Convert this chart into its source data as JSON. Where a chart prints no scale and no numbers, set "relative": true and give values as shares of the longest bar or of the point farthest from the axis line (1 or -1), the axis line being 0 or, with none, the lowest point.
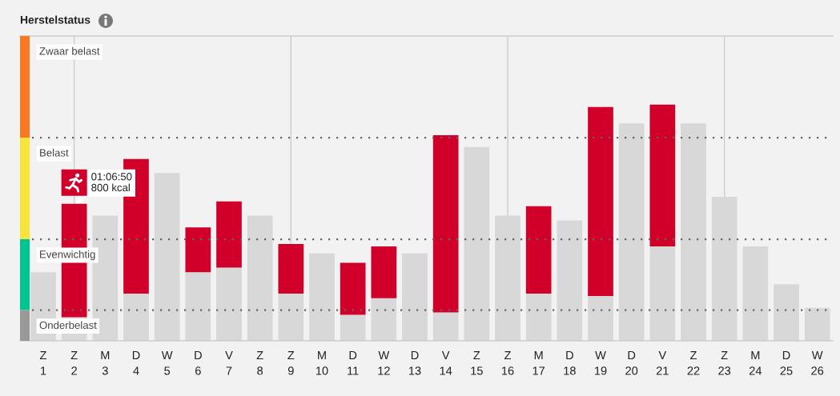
{
  "chart_data": {
    "type": "bar",
    "title": "Herstelstatus",
    "relative": true,
    "stacked": true,
    "tick_labels": "x",
    "categories": [
      "Z\n1",
      "Z\n2",
      "M\n3",
      "D\n4",
      "W\n5",
      "D\n6",
      "V\n7",
      "Z\n8",
      "Z\n9",
      "M\n10",
      "D\n11",
      "W\n12",
      "D\n13",
      "V\n14",
      "Z\n15",
      "Z\n16",
      "M\n17",
      "D\n18",
      "W\n19",
      "D\n20",
      "V\n21",
      "Z\n22",
      "Z\n23",
      "M\n24",
      "D\n25",
      "W\n26"
    ],
    "series": [
      {
        "color": "#d8d8d8",
        "values": [
          0.29,
          0.1,
          0.53,
          0.2,
          0.71,
          0.29,
          0.31,
          0.53,
          0.2,
          0.37,
          0.11,
          0.18,
          0.37,
          0.12,
          0.82,
          0.53,
          0.2,
          0.51,
          0.19,
          0.92,
          0.4,
          0.92,
          0.61,
          0.4,
          0.24,
          0.14
        ]
      },
      {
        "color": "#d0002a",
        "values": [
          null,
          0.48,
          null,
          0.57,
          null,
          0.19,
          0.28,
          null,
          0.21,
          null,
          0.22,
          0.22,
          null,
          0.75,
          null,
          null,
          0.37,
          null,
          0.8,
          null,
          0.6,
          null,
          null,
          null,
          null,
          null
        ]
      }
    ],
    "ref_lines": [
      {
        "axis": "x",
        "value": "Z\n2",
        "color": "#cccccc",
        "line_style": "solid"
      },
      {
        "axis": "x",
        "value": "Z\n9",
        "color": "#cccccc",
        "line_style": "solid"
      },
      {
        "axis": "x",
        "value": "Z\n16",
        "color": "#cccccc",
        "line_style": "solid"
      },
      {
        "axis": "x",
        "value": "Z\n23",
        "color": "#cccccc",
        "line_style": "solid"
      },
      {
        "axis": "y",
        "value": 0.86,
        "label": "Belast",
        "color": "#666666",
        "line_style": "dotted"
      },
      {
        "axis": "y",
        "value": 0.43,
        "label": "Evenwichtig",
        "color": "#666666",
        "line_style": "dotted"
      },
      {
        "axis": "y",
        "value": 0.13,
        "label": "Onderbelast",
        "color": "#666666",
        "line_style": "dotted"
      }
    ],
    "annotations": [
      "Zwaar belast",
      {
        "text": "01:06:50\n800 kcal",
        "x": "Z\n2",
        "y": 0.58
      }
    ]
  }
}
